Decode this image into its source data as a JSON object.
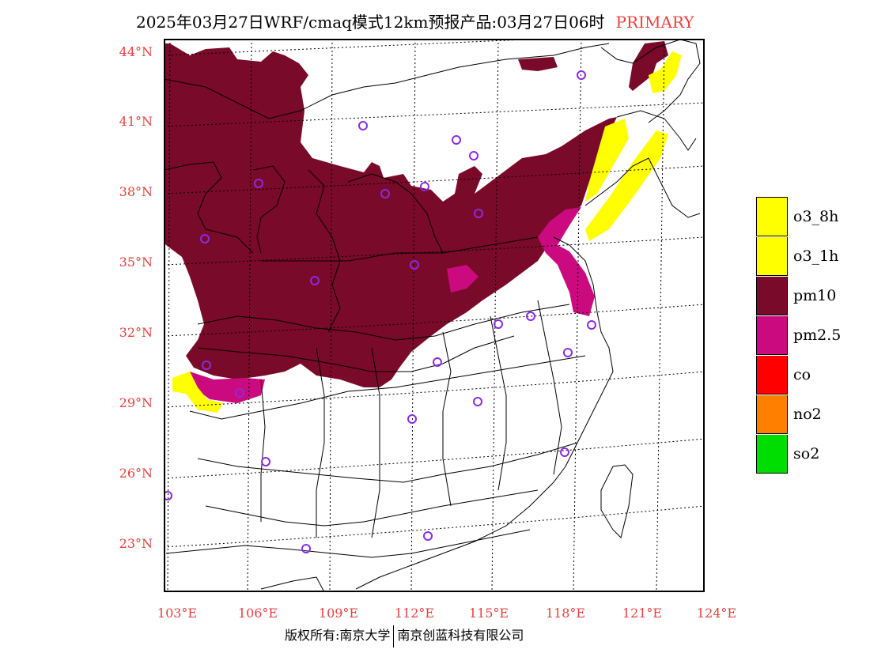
{
  "header": {
    "title": "2025年03月27日WRF/cmaq模式12km预报产品:03月27日06时",
    "tag": "PRIMARY"
  },
  "axes": {
    "lat_labels": [
      "44°N",
      "41°N",
      "38°N",
      "35°N",
      "32°N",
      "29°N",
      "26°N",
      "23°N"
    ],
    "lon_labels": [
      "103°E",
      "106°E",
      "109°E",
      "112°E",
      "115°E",
      "118°E",
      "121°E",
      "124°E"
    ]
  },
  "legend": [
    {
      "label": "o3_8h",
      "color": "#ffff00"
    },
    {
      "label": "o3_1h",
      "color": "#ffff00"
    },
    {
      "label": "pm10",
      "color": "#7a0a2a"
    },
    {
      "label": "pm2.5",
      "color": "#cc0a80"
    },
    {
      "label": "co",
      "color": "#ff0000"
    },
    {
      "label": "no2",
      "color": "#ff8000"
    },
    {
      "label": "so2",
      "color": "#00dd00"
    }
  ],
  "footer": {
    "left": "版权所有:南京大学",
    "right": "南京创蓝科技有限公司"
  },
  "colors": {
    "pm10": "#7a0a2a",
    "pm25": "#cc0a80",
    "o3": "#ffff00",
    "label_red": "#e84040",
    "station_purple": "#8a2be2"
  }
}
